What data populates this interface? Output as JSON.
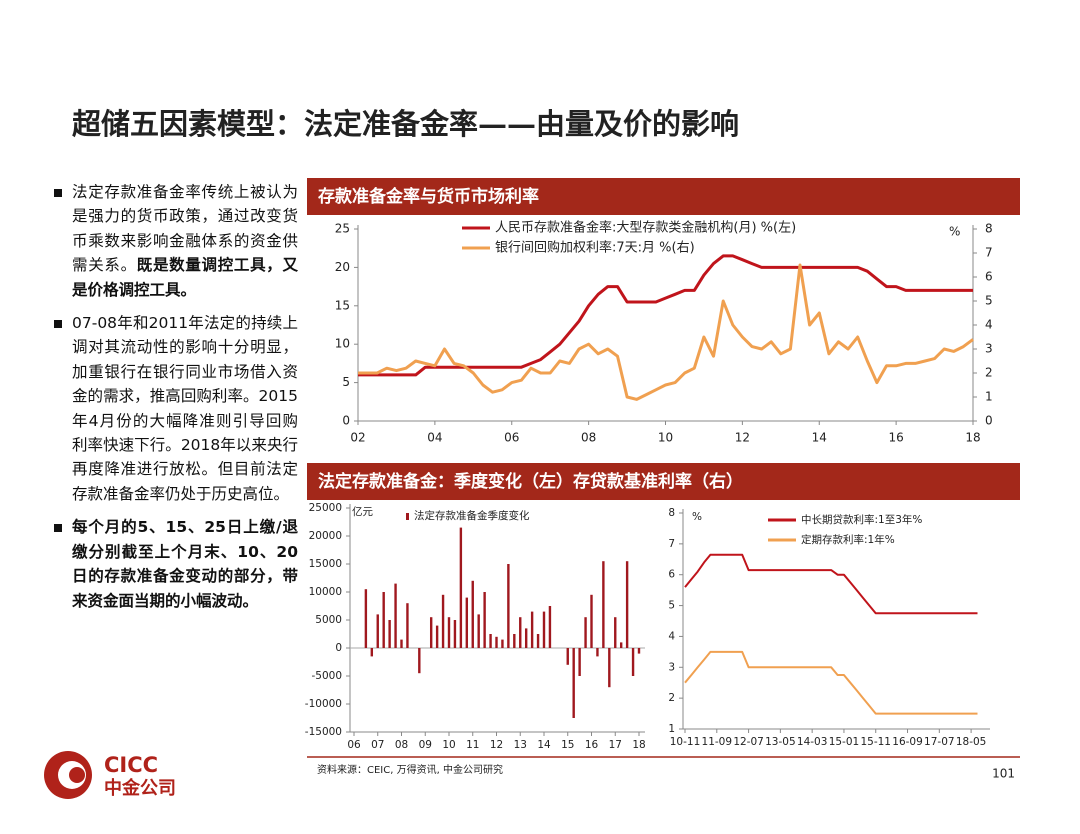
{
  "title": "超储五因素模型：法定准备金率——由量及价的影响",
  "bullets": [
    {
      "text": "法定存款准备金率传统上被认为是强力的货币政策，通过改变货币乘数来影响金融体系的资金供需关系。",
      "strong": "既是数量调控工具，又是价格调控工具。"
    },
    {
      "text": "07-08年和2011年法定的持续上调对其流动性的影响十分明显，加重银行在银行同业市场借入资金的需求，推高回购利率。2015年4月份的大幅降准则引导回购利率快速下行。2018年以来央行再度降准进行放松。但目前法定存款准备金率仍处于历史高位。"
    },
    {
      "strong": "每个月的5、15、25日上缴/退缴分别截至上个月末、10、20日的存款准备金变动的部分，带来资金面当期的小幅波动。"
    }
  ],
  "panels": [
    {
      "title": "存款准备金率与货币市场利率"
    },
    {
      "title": "法定存款准备金：季度变化（左）存贷款基准利率（右）"
    }
  ],
  "chart_data": [
    {
      "type": "line",
      "x": [
        2002,
        2002.25,
        2002.5,
        2002.75,
        2003,
        2003.25,
        2003.5,
        2003.75,
        2004,
        2004.25,
        2004.5,
        2004.75,
        2005,
        2005.25,
        2005.5,
        2005.75,
        2006,
        2006.25,
        2006.5,
        2006.75,
        2007,
        2007.25,
        2007.5,
        2007.75,
        2008,
        2008.25,
        2008.5,
        2008.75,
        2009,
        2009.25,
        2009.5,
        2009.75,
        2010,
        2010.25,
        2010.5,
        2010.75,
        2011,
        2011.25,
        2011.5,
        2011.75,
        2012,
        2012.25,
        2012.5,
        2012.75,
        2013,
        2013.25,
        2013.5,
        2013.75,
        2014,
        2014.25,
        2014.5,
        2014.75,
        2015,
        2015.25,
        2015.5,
        2015.75,
        2016,
        2016.25,
        2016.5,
        2016.75,
        2017,
        2017.25,
        2017.5,
        2017.75,
        2018
      ],
      "series": [
        {
          "name": "人民币存款准备金率:大型存款类金融机构(月) %(左)",
          "color": "#c0141b",
          "values": [
            6,
            6,
            6,
            6,
            6,
            6,
            6,
            7,
            7,
            7,
            7,
            7,
            7,
            7,
            7,
            7,
            7,
            7,
            7.5,
            8,
            9,
            10,
            11.5,
            13,
            15,
            16.5,
            17.5,
            17.5,
            15.5,
            15.5,
            15.5,
            15.5,
            16,
            16.5,
            17,
            17,
            19,
            20.5,
            21.5,
            21.5,
            21,
            20.5,
            20,
            20,
            20,
            20,
            20,
            20,
            20,
            20,
            20,
            20,
            20,
            19.5,
            18.5,
            17.5,
            17.5,
            17,
            17,
            17,
            17,
            17,
            17,
            17,
            17
          ]
        },
        {
          "name": "银行间回购加权利率:7天:月 %(右)",
          "color": "#f0a050",
          "axis": "y2",
          "values": [
            2.0,
            2.0,
            2.0,
            2.2,
            2.1,
            2.2,
            2.5,
            2.4,
            2.3,
            3.0,
            2.4,
            2.3,
            2.0,
            1.5,
            1.2,
            1.3,
            1.6,
            1.7,
            2.2,
            2.0,
            2.0,
            2.5,
            2.4,
            3.0,
            3.2,
            2.8,
            3.0,
            2.7,
            1.0,
            0.9,
            1.1,
            1.3,
            1.5,
            1.6,
            2.0,
            2.2,
            3.5,
            2.7,
            5.0,
            4.0,
            3.5,
            3.1,
            3.0,
            3.3,
            2.8,
            3.0,
            6.5,
            4.0,
            4.5,
            2.8,
            3.3,
            3.0,
            3.5,
            2.5,
            1.6,
            2.3,
            2.3,
            2.4,
            2.4,
            2.5,
            2.6,
            3.0,
            2.9,
            3.1,
            3.4
          ]
        }
      ],
      "xlim": [
        2002,
        2018
      ],
      "xticks": [
        {
          "value": 2002,
          "label": "02"
        },
        {
          "value": 2004,
          "label": "04"
        },
        {
          "value": 2006,
          "label": "06"
        },
        {
          "value": 2008,
          "label": "08"
        },
        {
          "value": 2010,
          "label": "10"
        },
        {
          "value": 2012,
          "label": "12"
        },
        {
          "value": 2014,
          "label": "14"
        },
        {
          "value": 2016,
          "label": "16"
        },
        {
          "value": 2018,
          "label": "18"
        }
      ],
      "ylim": [
        0,
        25
      ],
      "yticks": [
        0,
        5,
        10,
        15,
        20,
        25
      ],
      "y2lim": [
        0,
        8
      ],
      "y2ticks": [
        0,
        1,
        2,
        3,
        4,
        5,
        6,
        7,
        8
      ],
      "y2_label": "%",
      "grid": false
    },
    {
      "type": "bar",
      "y_label": "亿元",
      "categories": [
        "06",
        null,
        null,
        null,
        "07",
        null,
        null,
        null,
        "08",
        null,
        null,
        null,
        "09",
        null,
        null,
        null,
        "10",
        null,
        null,
        null,
        "11",
        null,
        null,
        null,
        "12",
        null,
        null,
        null,
        "13",
        null,
        null,
        null,
        "14",
        null,
        null,
        null,
        "15",
        null,
        null,
        null,
        "16",
        null,
        null,
        null,
        "17",
        null,
        null,
        null,
        "18"
      ],
      "series": [
        {
          "name": "法定存款准备金季度变化",
          "color": "#a0181e",
          "values": [
            0,
            0,
            10500,
            -1500,
            6000,
            10000,
            5000,
            11500,
            1500,
            8000,
            0,
            -4500,
            0,
            5500,
            4000,
            9500,
            5500,
            5000,
            21500,
            9000,
            12000,
            6000,
            10000,
            2500,
            2000,
            1500,
            15000,
            2500,
            5500,
            3500,
            6500,
            2500,
            6500,
            7500,
            0,
            0,
            -3000,
            -12500,
            -5000,
            5500,
            9500,
            -1500,
            15500,
            -7000,
            5500,
            1000,
            15500,
            -5000,
            -1000
          ]
        }
      ],
      "ylim": [
        -15000,
        25000
      ],
      "yticks": [
        -15000,
        -10000,
        -5000,
        0,
        5000,
        10000,
        15000,
        20000,
        25000
      ],
      "grid": false
    },
    {
      "type": "line",
      "y_label": "%",
      "categories": [
        "10-11",
        null,
        null,
        null,
        null,
        "11-09",
        null,
        null,
        null,
        null,
        "12-07",
        null,
        null,
        null,
        null,
        "13-05",
        null,
        null,
        null,
        null,
        "14-03",
        null,
        null,
        null,
        null,
        "15-01",
        null,
        null,
        null,
        null,
        "15-11",
        null,
        null,
        null,
        null,
        "16-09",
        null,
        null,
        null,
        null,
        "17-07",
        null,
        null,
        null,
        null,
        "18-05",
        null
      ],
      "series": [
        {
          "name": "中长期贷款利率:1至3年%",
          "color": "#c0141b",
          "values": [
            5.6,
            5.85,
            6.1,
            6.4,
            6.65,
            6.65,
            6.65,
            6.65,
            6.65,
            6.65,
            6.15,
            6.15,
            6.15,
            6.15,
            6.15,
            6.15,
            6.15,
            6.15,
            6.15,
            6.15,
            6.15,
            6.15,
            6.15,
            6.15,
            6.0,
            6.0,
            5.75,
            5.5,
            5.25,
            5.0,
            4.75,
            4.75,
            4.75,
            4.75,
            4.75,
            4.75,
            4.75,
            4.75,
            4.75,
            4.75,
            4.75,
            4.75,
            4.75,
            4.75,
            4.75,
            4.75,
            4.75
          ]
        },
        {
          "name": "定期存款利率:1年%",
          "color": "#f0a050",
          "values": [
            2.5,
            2.75,
            3.0,
            3.25,
            3.5,
            3.5,
            3.5,
            3.5,
            3.5,
            3.5,
            3.0,
            3.0,
            3.0,
            3.0,
            3.0,
            3.0,
            3.0,
            3.0,
            3.0,
            3.0,
            3.0,
            3.0,
            3.0,
            3.0,
            2.75,
            2.75,
            2.5,
            2.25,
            2.0,
            1.75,
            1.5,
            1.5,
            1.5,
            1.5,
            1.5,
            1.5,
            1.5,
            1.5,
            1.5,
            1.5,
            1.5,
            1.5,
            1.5,
            1.5,
            1.5,
            1.5,
            1.5
          ]
        }
      ],
      "ylim": [
        1,
        8
      ],
      "yticks": [
        1,
        2,
        3,
        4,
        5,
        6,
        7,
        8
      ],
      "grid": false
    }
  ],
  "source": "资料来源：CEIC, 万得资讯, 中金公司研究",
  "page_number": "101",
  "logo": {
    "en": "CICC",
    "cn": "中金公司"
  }
}
